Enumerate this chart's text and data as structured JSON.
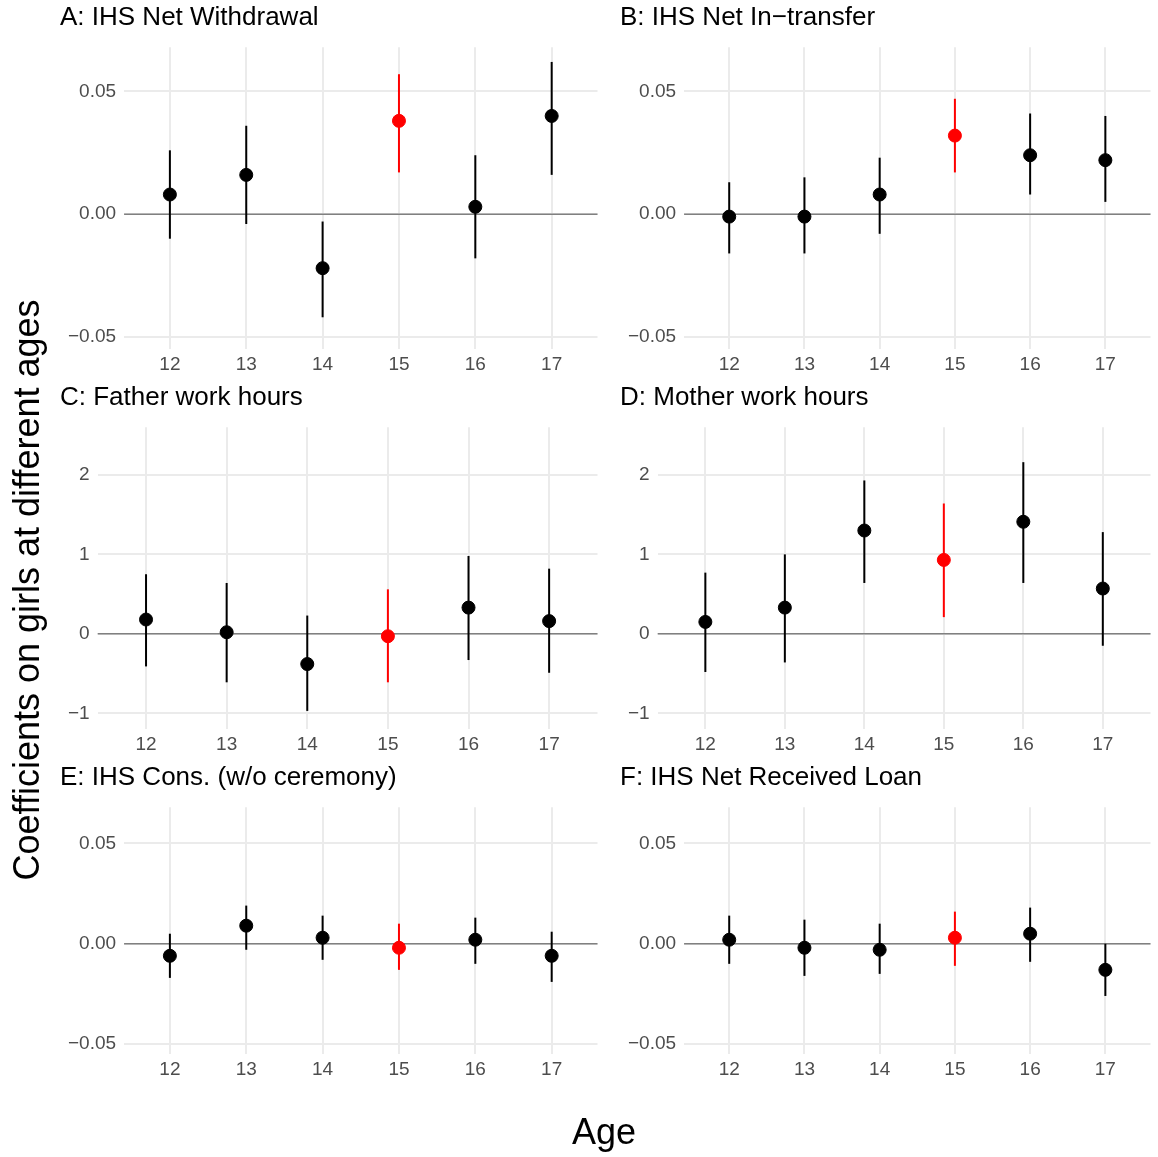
{
  "chart_data": [
    {
      "type": "scatter",
      "title": "A: IHS Net Withdrawal",
      "ylabel": "Coefficients on girls at different ages",
      "marker": "circle",
      "grid": true,
      "x": [
        12,
        13,
        14,
        15,
        16,
        17
      ],
      "xlim": [
        11.4,
        17.6
      ],
      "xticks": [
        12,
        13,
        14,
        15,
        16,
        17
      ],
      "ylim": [
        -0.055,
        0.068
      ],
      "yticks": [
        {
          "value": -0.05,
          "label": "−0.05"
        },
        {
          "value": 0,
          "label": "0.00"
        },
        {
          "value": 0.05,
          "label": "0.05"
        }
      ],
      "ref_lines": [
        {
          "axis": "y",
          "value": 0,
          "color": "#808080"
        }
      ],
      "series": [
        {
          "colors": [
            "#000000",
            "#000000",
            "#000000",
            "#ff0000",
            "#000000",
            "#000000"
          ],
          "values": [
            0.008,
            0.016,
            -0.022,
            0.038,
            0.003,
            0.04
          ],
          "errors": [
            [
              -0.01,
              0.026
            ],
            [
              -0.004,
              0.036
            ],
            [
              -0.042,
              -0.003
            ],
            [
              0.017,
              0.057
            ],
            [
              -0.018,
              0.024
            ],
            [
              0.016,
              0.062
            ]
          ]
        }
      ]
    },
    {
      "type": "scatter",
      "title": "B: IHS Net In−transfer",
      "marker": "circle",
      "grid": true,
      "x": [
        12,
        13,
        14,
        15,
        16,
        17
      ],
      "xlim": [
        11.4,
        17.6
      ],
      "xticks": [
        12,
        13,
        14,
        15,
        16,
        17
      ],
      "ylim": [
        -0.055,
        0.068
      ],
      "yticks": [
        {
          "value": -0.05,
          "label": "−0.05"
        },
        {
          "value": 0,
          "label": "0.00"
        },
        {
          "value": 0.05,
          "label": "0.05"
        }
      ],
      "ref_lines": [
        {
          "axis": "y",
          "value": 0,
          "color": "#808080"
        }
      ],
      "series": [
        {
          "colors": [
            "#000000",
            "#000000",
            "#000000",
            "#ff0000",
            "#000000",
            "#000000"
          ],
          "values": [
            -0.001,
            -0.001,
            0.008,
            0.032,
            0.024,
            0.022
          ],
          "errors": [
            [
              -0.016,
              0.013
            ],
            [
              -0.016,
              0.015
            ],
            [
              -0.008,
              0.023
            ],
            [
              0.017,
              0.047
            ],
            [
              0.008,
              0.041
            ],
            [
              0.005,
              0.04
            ]
          ]
        }
      ]
    },
    {
      "type": "scatter",
      "title": "C: Father work hours",
      "marker": "circle",
      "grid": true,
      "x": [
        12,
        13,
        14,
        15,
        16,
        17
      ],
      "xlim": [
        11.4,
        17.6
      ],
      "xticks": [
        12,
        13,
        14,
        15,
        16,
        17
      ],
      "ylim": [
        -1.2,
        2.6
      ],
      "yticks": [
        {
          "value": -1,
          "label": "−1"
        },
        0,
        1,
        2
      ],
      "ref_lines": [
        {
          "axis": "y",
          "value": 0,
          "color": "#808080"
        }
      ],
      "series": [
        {
          "colors": [
            "#000000",
            "#000000",
            "#000000",
            "#ff0000",
            "#000000",
            "#000000"
          ],
          "values": [
            0.18,
            0.02,
            -0.38,
            -0.03,
            0.33,
            0.16
          ],
          "errors": [
            [
              -0.41,
              0.75
            ],
            [
              -0.61,
              0.64
            ],
            [
              -0.97,
              0.23
            ],
            [
              -0.61,
              0.56
            ],
            [
              -0.33,
              0.98
            ],
            [
              -0.49,
              0.82
            ]
          ]
        }
      ]
    },
    {
      "type": "scatter",
      "title": "D: Mother work hours",
      "marker": "circle",
      "grid": true,
      "x": [
        12,
        13,
        14,
        15,
        16,
        17
      ],
      "xlim": [
        11.4,
        17.6
      ],
      "xticks": [
        12,
        13,
        14,
        15,
        16,
        17
      ],
      "ylim": [
        -1.2,
        2.6
      ],
      "yticks": [
        {
          "value": -1,
          "label": "−1"
        },
        0,
        1,
        2
      ],
      "ref_lines": [
        {
          "axis": "y",
          "value": 0,
          "color": "#808080"
        }
      ],
      "series": [
        {
          "colors": [
            "#000000",
            "#000000",
            "#000000",
            "#ff0000",
            "#000000",
            "#000000"
          ],
          "values": [
            0.15,
            0.33,
            1.3,
            0.93,
            1.41,
            0.57
          ],
          "errors": [
            [
              -0.48,
              0.77
            ],
            [
              -0.36,
              1.0
            ],
            [
              0.64,
              1.93
            ],
            [
              0.21,
              1.64
            ],
            [
              0.64,
              2.16
            ],
            [
              -0.15,
              1.28
            ]
          ]
        }
      ]
    },
    {
      "type": "scatter",
      "title": "E: IHS Cons. (w/o ceremony)",
      "xlabel": "Age",
      "marker": "circle",
      "grid": true,
      "x": [
        12,
        13,
        14,
        15,
        16,
        17
      ],
      "xlim": [
        11.4,
        17.6
      ],
      "xticks": [
        12,
        13,
        14,
        15,
        16,
        17
      ],
      "ylim": [
        -0.055,
        0.068
      ],
      "yticks": [
        {
          "value": -0.05,
          "label": "−0.05"
        },
        {
          "value": 0,
          "label": "0.00"
        },
        {
          "value": 0.05,
          "label": "0.05"
        }
      ],
      "ref_lines": [
        {
          "axis": "y",
          "value": 0,
          "color": "#808080"
        }
      ],
      "series": [
        {
          "colors": [
            "#000000",
            "#000000",
            "#000000",
            "#ff0000",
            "#000000",
            "#000000"
          ],
          "values": [
            -0.006,
            0.009,
            0.003,
            -0.002,
            0.002,
            -0.006
          ],
          "errors": [
            [
              -0.017,
              0.005
            ],
            [
              -0.003,
              0.019
            ],
            [
              -0.008,
              0.014
            ],
            [
              -0.013,
              0.01
            ],
            [
              -0.01,
              0.013
            ],
            [
              -0.019,
              0.006
            ]
          ]
        }
      ]
    },
    {
      "type": "scatter",
      "title": "F: IHS Net Received Loan",
      "marker": "circle",
      "grid": true,
      "x": [
        12,
        13,
        14,
        15,
        16,
        17
      ],
      "xlim": [
        11.4,
        17.6
      ],
      "xticks": [
        12,
        13,
        14,
        15,
        16,
        17
      ],
      "ylim": [
        -0.055,
        0.068
      ],
      "yticks": [
        {
          "value": -0.05,
          "label": "−0.05"
        },
        {
          "value": 0,
          "label": "0.00"
        },
        {
          "value": 0.05,
          "label": "0.05"
        }
      ],
      "ref_lines": [
        {
          "axis": "y",
          "value": 0,
          "color": "#808080"
        }
      ],
      "series": [
        {
          "colors": [
            "#000000",
            "#000000",
            "#000000",
            "#ff0000",
            "#000000",
            "#000000"
          ],
          "values": [
            0.002,
            -0.002,
            -0.003,
            0.003,
            0.005,
            -0.013
          ],
          "errors": [
            [
              -0.01,
              0.014
            ],
            [
              -0.016,
              0.012
            ],
            [
              -0.015,
              0.01
            ],
            [
              -0.011,
              0.016
            ],
            [
              -0.009,
              0.018
            ],
            [
              -0.026,
              0
            ]
          ]
        }
      ]
    }
  ]
}
